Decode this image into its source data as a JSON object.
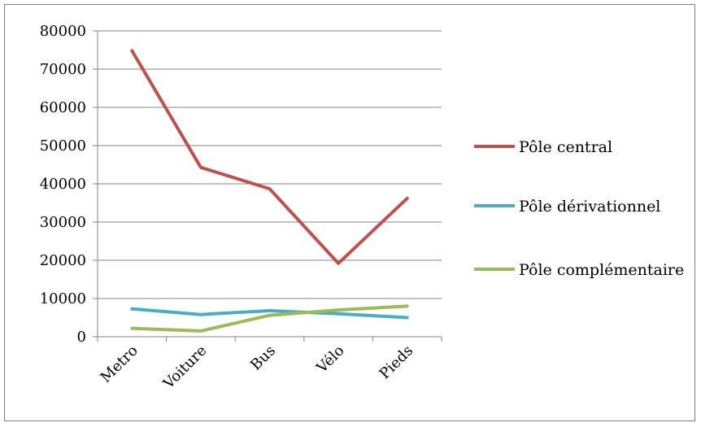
{
  "chart_data": {
    "type": "line",
    "title": "",
    "xlabel": "",
    "ylabel": "",
    "categories": [
      "Metro",
      "Voiture",
      "Bus",
      "Vélo",
      "Pieds"
    ],
    "ylim": [
      0,
      80000
    ],
    "yticks": [
      0,
      10000,
      20000,
      30000,
      40000,
      50000,
      60000,
      70000,
      80000
    ],
    "grid": true,
    "legend_position": "right",
    "series": [
      {
        "name": "Pôle central",
        "color": "#c0504d",
        "values": [
          74800,
          44300,
          38700,
          19200,
          36200
        ]
      },
      {
        "name": "Pôle dérivationnel",
        "color": "#4bacc6",
        "values": [
          7300,
          5800,
          6800,
          6000,
          5000
        ]
      },
      {
        "name": "Pôle complémentaire",
        "color": "#9bbb59",
        "values": [
          2200,
          1500,
          5600,
          7000,
          8000
        ]
      }
    ]
  }
}
